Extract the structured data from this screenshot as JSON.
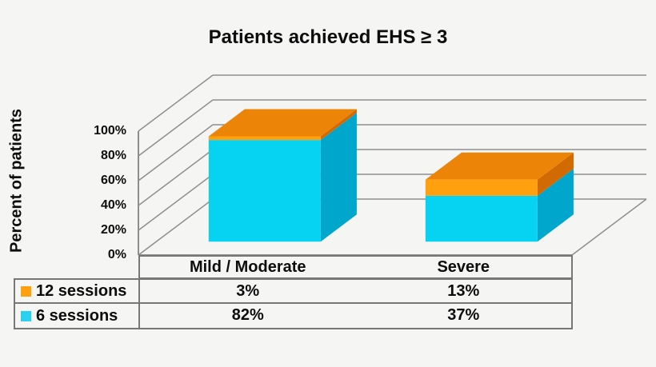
{
  "title": "Patients achieved EHS ≥ 3",
  "chart_data": {
    "type": "bar",
    "subtype": "3d-stacked-column",
    "title": "Patients achieved EHS ≥ 3",
    "ylabel": "Percent of patients",
    "xlabel": "",
    "categories": [
      "Mild / Moderate",
      "Severe"
    ],
    "series": [
      {
        "name": "12 sessions",
        "values": [
          3,
          13
        ],
        "color_front": "#FFA00E",
        "color_side": "#D26A04",
        "color_top": "#EC8407"
      },
      {
        "name": "6 sessions",
        "values": [
          82,
          37
        ],
        "color_front": "#06D2F2",
        "color_side": "#00A6CB",
        "color_top": "#29C9E8"
      }
    ],
    "stack_bottom_to_top": [
      "6 sessions",
      "12 sessions"
    ],
    "ylim": [
      0,
      100
    ],
    "yticks": [
      0,
      20,
      40,
      60,
      80,
      100
    ],
    "ytick_labels": [
      "0%",
      "20%",
      "40%",
      "60%",
      "80%",
      "100%"
    ],
    "grid": true,
    "legend_position": "bottom-left-table"
  },
  "table": {
    "column_headers": [
      "Mild / Moderate",
      "Severe"
    ],
    "rows": [
      {
        "label": "12 sessions",
        "swatch_color": "#FFA00E",
        "values": [
          "3%",
          "13%"
        ]
      },
      {
        "label": "6 sessions",
        "swatch_color": "#2AD2F0",
        "values": [
          "82%",
          "37%"
        ]
      }
    ]
  },
  "colors": {
    "background": "#f5f5f4",
    "gridline": "#8e8e8e",
    "table_border": "#777777",
    "text": "#0d0d0d"
  }
}
